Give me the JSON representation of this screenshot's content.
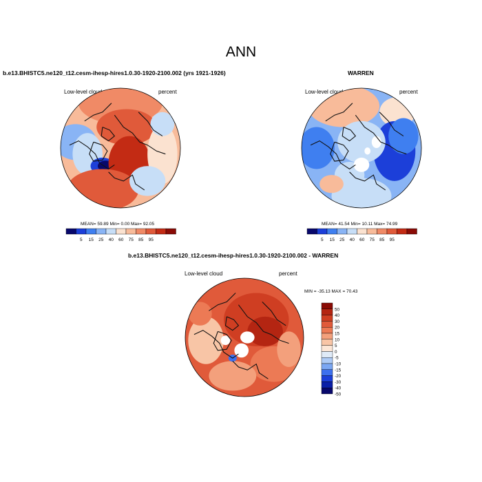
{
  "page": {
    "title": "ANN",
    "diff_title": "b.e13.BHISTC5.ne120_t12.cesm-ihesp-hires1.0.30-1920-2100.002 - WARREN"
  },
  "colors": {
    "abs_scale": [
      "#08086b",
      "#1c3fd9",
      "#3f7ff0",
      "#89b4f5",
      "#c7def7",
      "#fbe2d0",
      "#f8bb9a",
      "#f08a66",
      "#e05a3a",
      "#c32b14",
      "#8a0b05"
    ],
    "diff_scale": [
      "#08086b",
      "#0a1fa8",
      "#1c3fd9",
      "#3d70ee",
      "#7ba7f3",
      "#aecbf6",
      "#dfeaf7",
      "#fce6d6",
      "#f8c5a6",
      "#f3a07c",
      "#ec7a55",
      "#e05a3a",
      "#cf3e22",
      "#b42512",
      "#8a0b05"
    ]
  },
  "chart_data": [
    {
      "type": "heatmap",
      "projection": "polar-stereographic",
      "title": "b.e13.BHISTC5.ne120_t12.cesm-ihesp-hires1.0.30-1920-2100.002 (yrs 1921-1926)",
      "variable": "Low-level cloud",
      "units": "percent",
      "stats_text": "MEAN=  59.89  Min=   0.00  Max=  92.05",
      "stats": {
        "mean": 59.89,
        "min": 0.0,
        "max": 92.05
      },
      "levels": [
        "5",
        "15",
        "25",
        "40",
        "60",
        "75",
        "85",
        "95"
      ],
      "legend": "bottom"
    },
    {
      "type": "heatmap",
      "projection": "polar-stereographic",
      "title": "WARREN",
      "variable": "Low-level cloud",
      "units": "percent",
      "stats_text": "MEAN=  41.54  Min=  10.11  Max=  74.99",
      "stats": {
        "mean": 41.54,
        "min": 10.11,
        "max": 74.99
      },
      "levels": [
        "5",
        "15",
        "25",
        "40",
        "60",
        "75",
        "85",
        "95"
      ],
      "legend": "bottom"
    },
    {
      "type": "heatmap",
      "projection": "polar-stereographic",
      "title": "b.e13.BHISTC5.ne120_t12.cesm-ihesp-hires1.0.30-1920-2100.002 - WARREN",
      "variable": "Low-level cloud",
      "units": "percent",
      "stats_text": "MIN = -35.13 MAX =  70.43",
      "stats": {
        "min": -35.13,
        "max": 70.43
      },
      "levels": [
        "50",
        "40",
        "30",
        "20",
        "15",
        "10",
        "5",
        "0",
        "-5",
        "-10",
        "-15",
        "-20",
        "-30",
        "-40",
        "-50"
      ],
      "legend": "right"
    }
  ]
}
